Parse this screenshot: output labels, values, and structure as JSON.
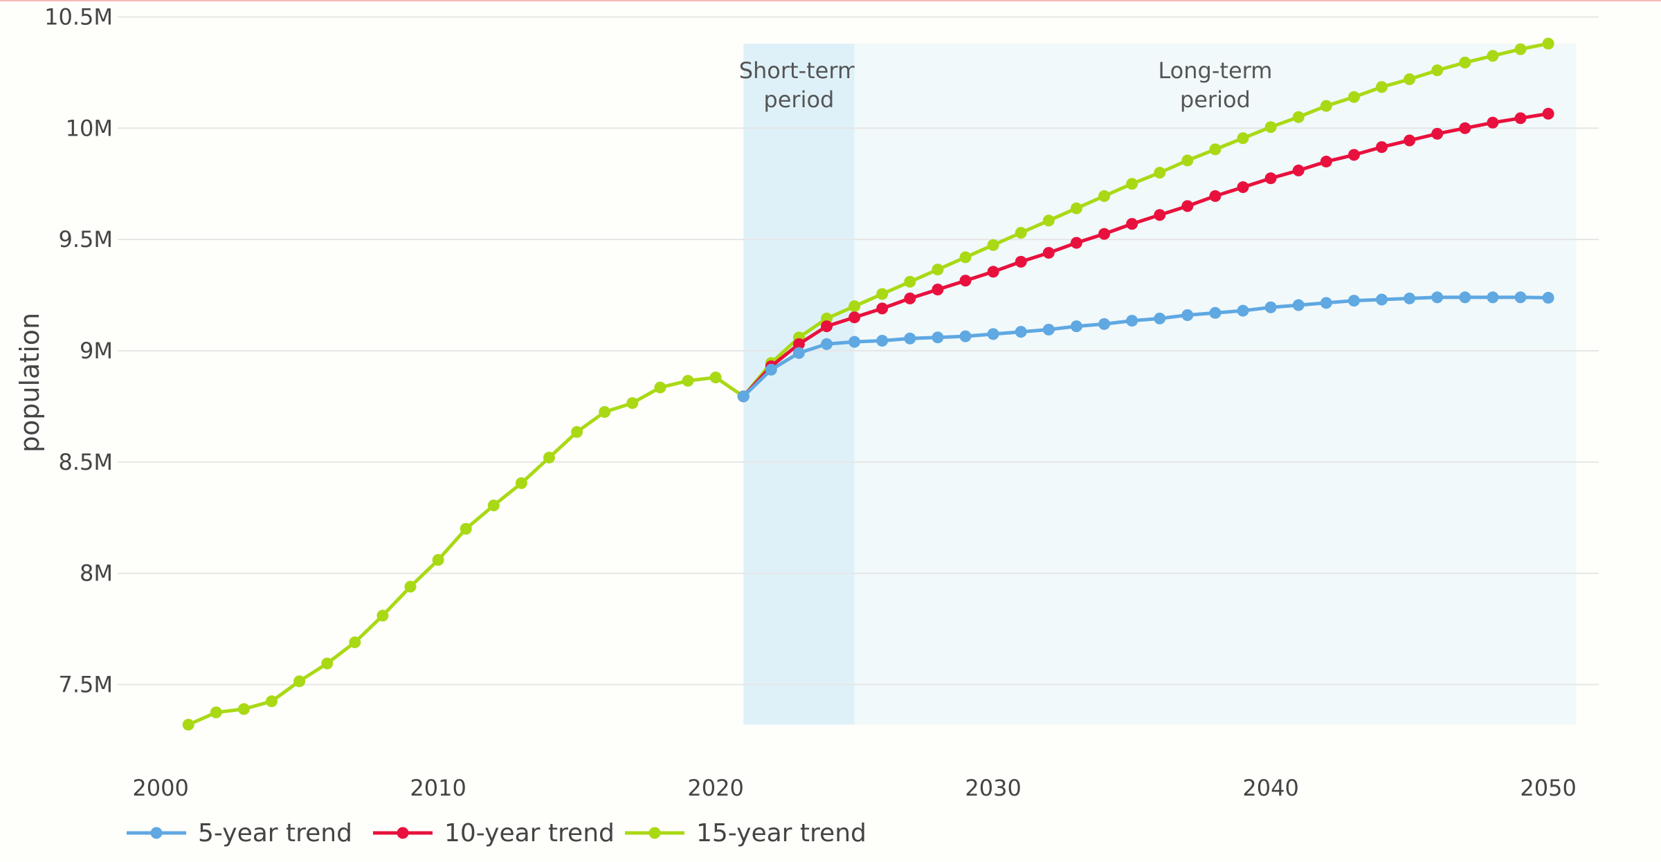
{
  "chart_data": {
    "type": "line",
    "title": "",
    "xlabel": "",
    "ylabel": "population",
    "xlim": [
      1999,
      2051
    ],
    "ylim": [
      7270000,
      10500000
    ],
    "x_ticks": [
      2000,
      2010,
      2020,
      2030,
      2040,
      2050
    ],
    "y_ticks": [
      {
        "value": 7500000,
        "label": "7.5M"
      },
      {
        "value": 8000000,
        "label": "8M"
      },
      {
        "value": 8500000,
        "label": "8.5M"
      },
      {
        "value": 9000000,
        "label": "9M"
      },
      {
        "value": 9500000,
        "label": "9.5M"
      },
      {
        "value": 10000000,
        "label": "10M"
      },
      {
        "value": 10500000,
        "label": "10.5M"
      }
    ],
    "grid": true,
    "legend_position": "bottom-left",
    "regions": [
      {
        "label_lines": [
          "Short-term",
          "period"
        ],
        "x0": 2021,
        "x1": 2025,
        "y0": 7320000,
        "y1": 10380000,
        "color": "#dff1f8"
      },
      {
        "label_lines": [
          "Long-term",
          "period"
        ],
        "x0": 2025,
        "x1": 2051,
        "y0": 7320000,
        "y1": 10380000,
        "color": "#f1f9fb"
      }
    ],
    "series": [
      {
        "name": "15-year trend",
        "color": "#a9d915",
        "x": [
          2001,
          2002,
          2003,
          2004,
          2005,
          2006,
          2007,
          2008,
          2009,
          2010,
          2011,
          2012,
          2013,
          2014,
          2015,
          2016,
          2017,
          2018,
          2019,
          2020,
          2021,
          2022,
          2023,
          2024,
          2025,
          2026,
          2027,
          2028,
          2029,
          2030,
          2031,
          2032,
          2033,
          2034,
          2035,
          2036,
          2037,
          2038,
          2039,
          2040,
          2041,
          2042,
          2043,
          2044,
          2045,
          2046,
          2047,
          2048,
          2049,
          2050
        ],
        "values": [
          7320000,
          7375000,
          7390000,
          7425000,
          7515000,
          7595000,
          7690000,
          7810000,
          7940000,
          8060000,
          8200000,
          8305000,
          8405000,
          8520000,
          8635000,
          8725000,
          8765000,
          8835000,
          8865000,
          8880000,
          8795000,
          8945000,
          9060000,
          9145000,
          9200000,
          9255000,
          9310000,
          9365000,
          9420000,
          9475000,
          9530000,
          9585000,
          9640000,
          9695000,
          9750000,
          9800000,
          9855000,
          9905000,
          9955000,
          10005000,
          10050000,
          10100000,
          10140000,
          10185000,
          10220000,
          10260000,
          10295000,
          10325000,
          10355000,
          10380000
        ]
      },
      {
        "name": "10-year trend",
        "color": "#e8113d",
        "x": [
          2021,
          2022,
          2023,
          2024,
          2025,
          2026,
          2027,
          2028,
          2029,
          2030,
          2031,
          2032,
          2033,
          2034,
          2035,
          2036,
          2037,
          2038,
          2039,
          2040,
          2041,
          2042,
          2043,
          2044,
          2045,
          2046,
          2047,
          2048,
          2049,
          2050
        ],
        "values": [
          8795000,
          8930000,
          9030000,
          9110000,
          9150000,
          9190000,
          9235000,
          9275000,
          9315000,
          9355000,
          9400000,
          9440000,
          9485000,
          9525000,
          9570000,
          9610000,
          9650000,
          9695000,
          9735000,
          9775000,
          9810000,
          9850000,
          9880000,
          9915000,
          9945000,
          9975000,
          10000000,
          10025000,
          10045000,
          10065000
        ]
      },
      {
        "name": "5-year trend",
        "color": "#5fa8e2",
        "x": [
          2021,
          2022,
          2023,
          2024,
          2025,
          2026,
          2027,
          2028,
          2029,
          2030,
          2031,
          2032,
          2033,
          2034,
          2035,
          2036,
          2037,
          2038,
          2039,
          2040,
          2041,
          2042,
          2043,
          2044,
          2045,
          2046,
          2047,
          2048,
          2049,
          2050
        ],
        "values": [
          8795000,
          8915000,
          8990000,
          9030000,
          9040000,
          9045000,
          9055000,
          9060000,
          9065000,
          9075000,
          9085000,
          9095000,
          9110000,
          9120000,
          9135000,
          9145000,
          9160000,
          9170000,
          9180000,
          9195000,
          9205000,
          9215000,
          9225000,
          9230000,
          9235000,
          9240000,
          9240000,
          9240000,
          9240000,
          9238000
        ]
      }
    ],
    "legend": [
      {
        "name": "5-year trend",
        "color": "#5fa8e2"
      },
      {
        "name": "10-year trend",
        "color": "#e8113d"
      },
      {
        "name": "15-year trend",
        "color": "#a9d915"
      }
    ]
  }
}
